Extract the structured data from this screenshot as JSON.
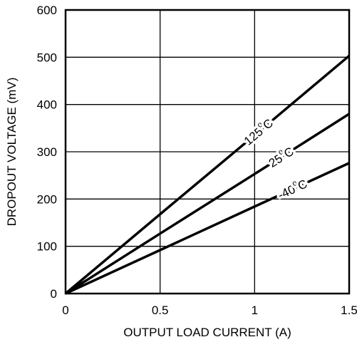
{
  "chart_data": {
    "type": "line",
    "title": "",
    "xlabel": "OUTPUT LOAD CURRENT (A)",
    "ylabel": "DROPOUT VOLTAGE (mV)",
    "xlim": [
      0,
      1.5
    ],
    "ylim": [
      0,
      600
    ],
    "x_ticks": [
      {
        "value": 0,
        "label": "0"
      },
      {
        "value": 0.5,
        "label": "0.5"
      },
      {
        "value": 1,
        "label": "1"
      },
      {
        "value": 1.5,
        "label": "1.5"
      }
    ],
    "y_ticks": [
      {
        "value": 0,
        "label": "0"
      },
      {
        "value": 100,
        "label": "100"
      },
      {
        "value": 200,
        "label": "200"
      },
      {
        "value": 300,
        "label": "300"
      },
      {
        "value": 400,
        "label": "400"
      },
      {
        "value": 500,
        "label": "500"
      },
      {
        "value": 600,
        "label": "600"
      }
    ],
    "grid": true,
    "line_color": "#000000",
    "series": [
      {
        "name": "125°C",
        "label_main": "125",
        "label_sup": "o",
        "label_unit": "C",
        "x": [
          0,
          0.5,
          1.0,
          1.5
        ],
        "y": [
          0,
          168,
          335,
          503
        ]
      },
      {
        "name": "25°C",
        "label_main": "25",
        "label_sup": "o",
        "label_unit": "C",
        "x": [
          0,
          0.5,
          1.0,
          1.5
        ],
        "y": [
          0,
          127,
          253,
          380
        ]
      },
      {
        "name": "-40°C",
        "label_main": "-40",
        "label_sup": "o",
        "label_unit": "C",
        "x": [
          0,
          0.5,
          1.0,
          1.5
        ],
        "y": [
          0,
          92,
          184,
          276
        ]
      }
    ]
  }
}
